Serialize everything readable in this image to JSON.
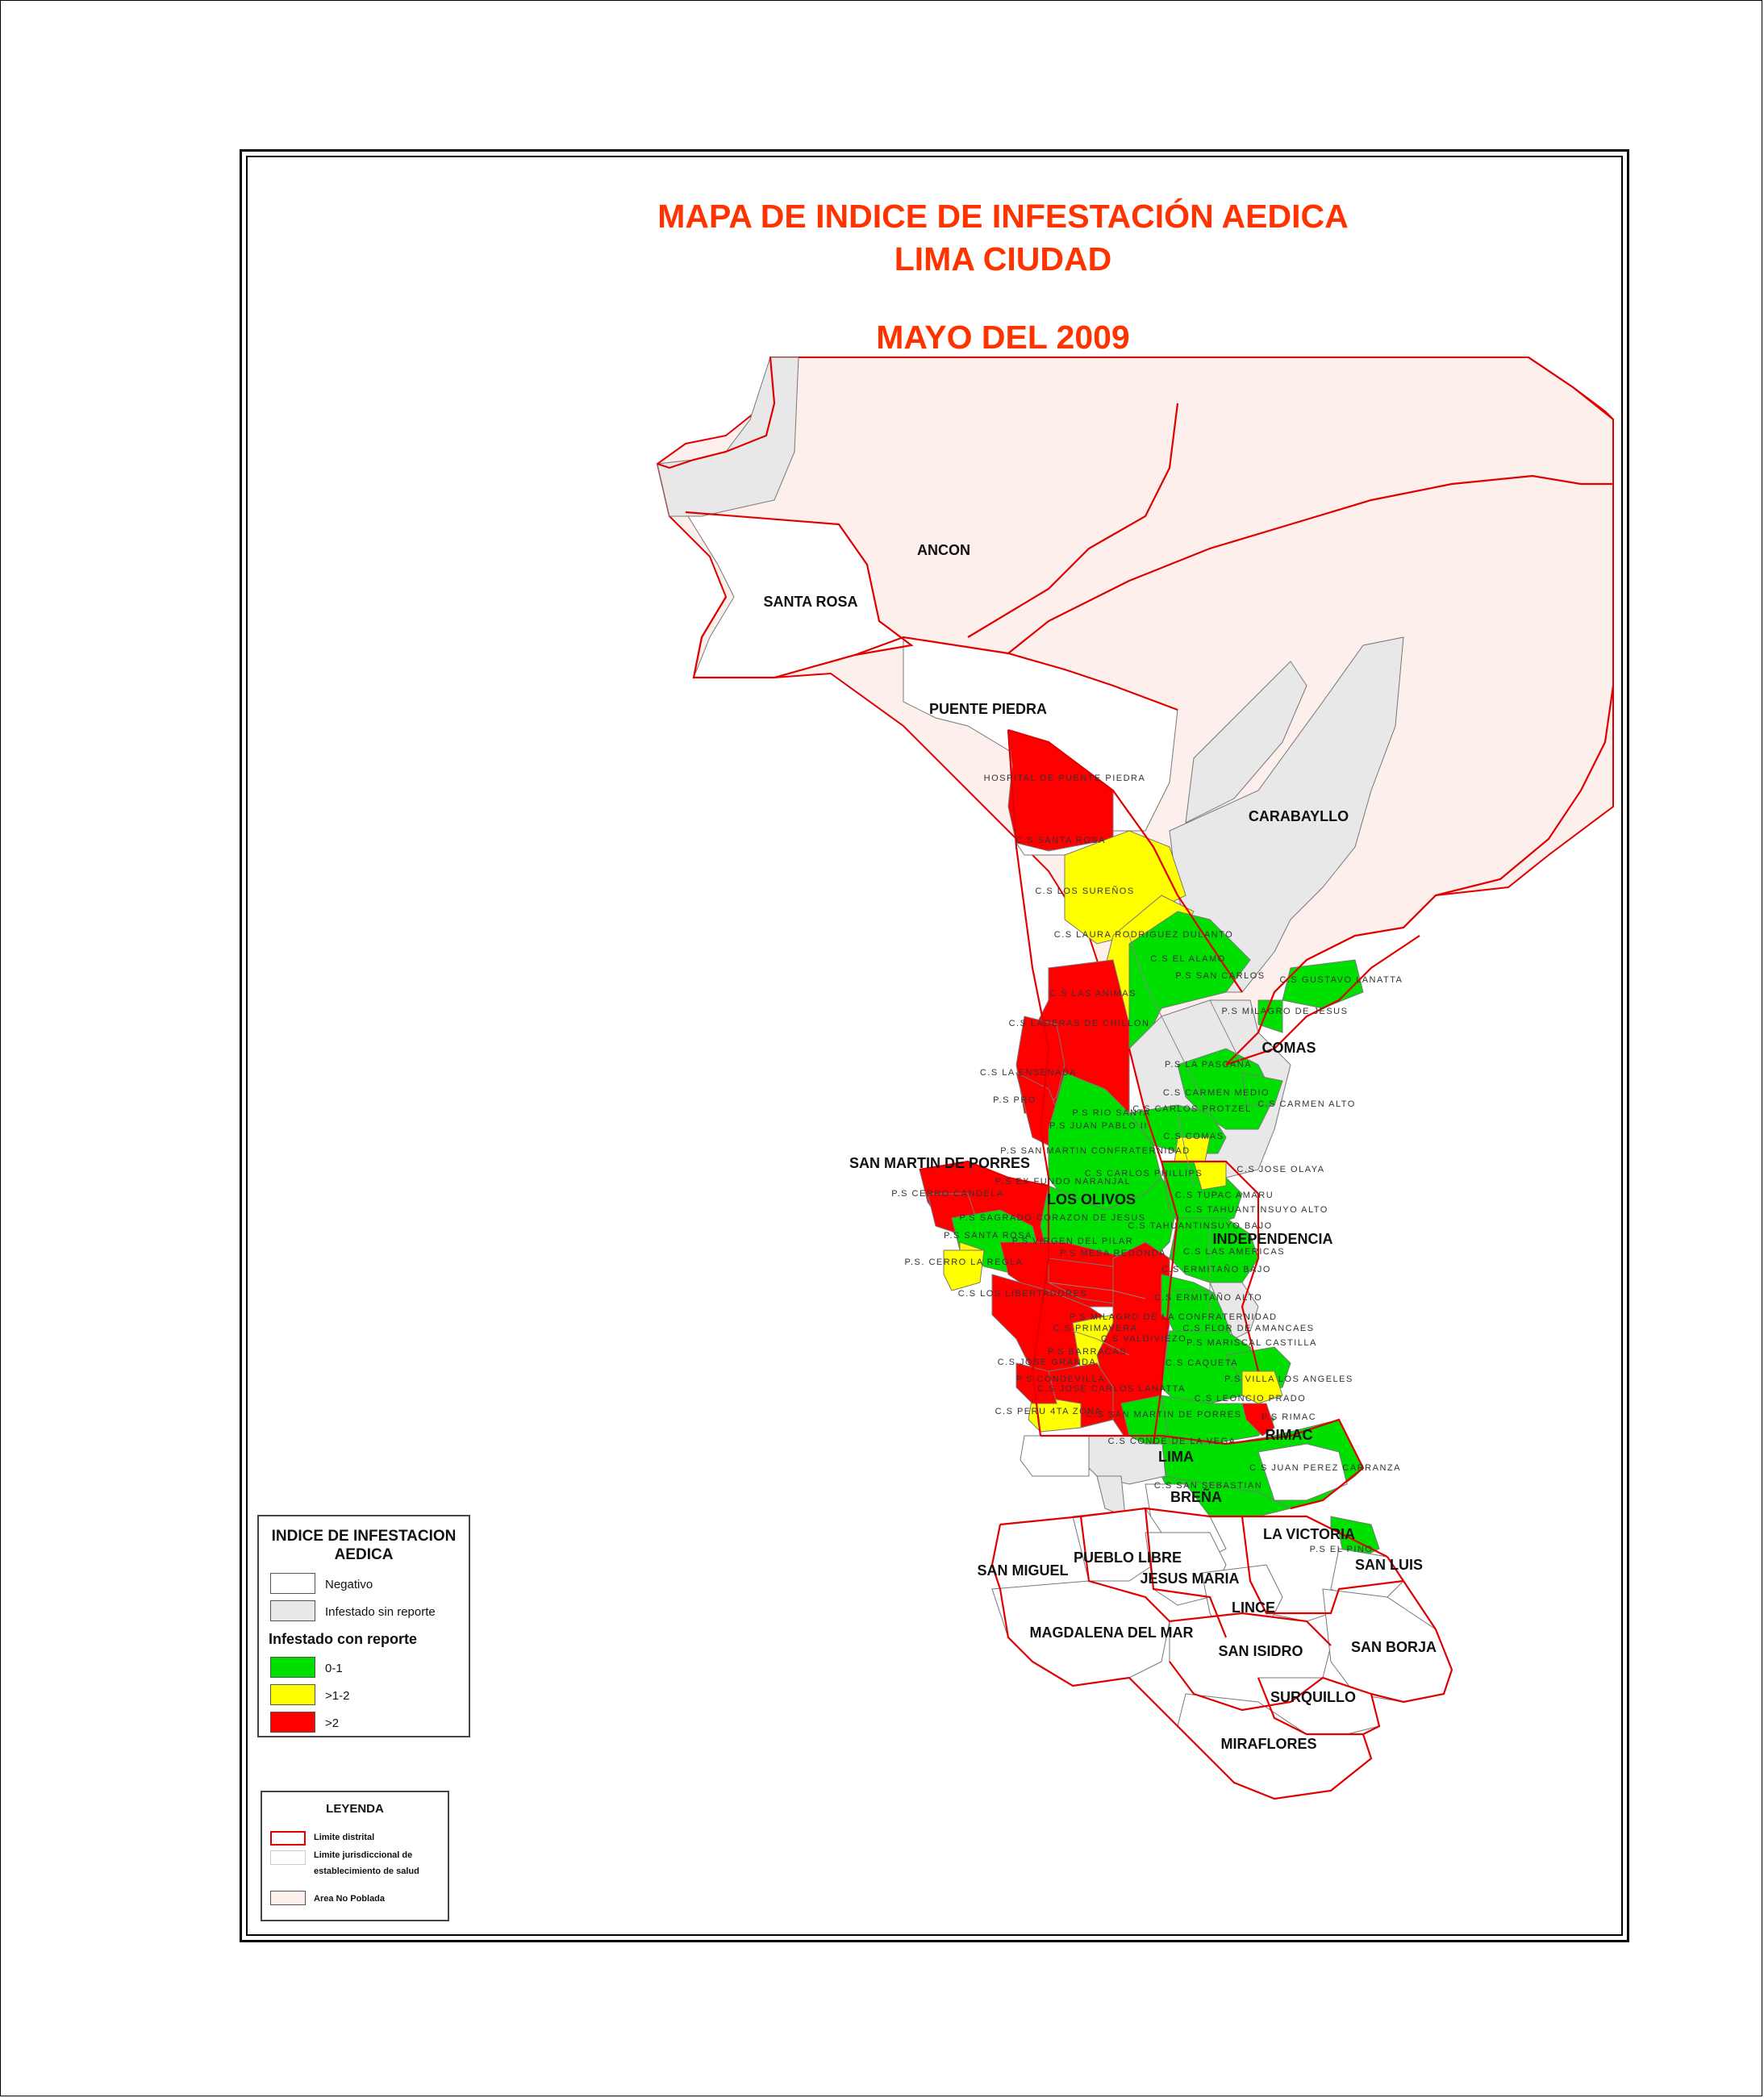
{
  "title": {
    "line1": "MAPA DE INDICE DE INFESTACIÓN AEDICA",
    "line2": "LIMA CIUDAD",
    "date": "MAYO DEL 2009"
  },
  "colors": {
    "negative": "#ffffff",
    "no_report": "#e8e8e8",
    "low": "#00e000",
    "mid": "#ffff00",
    "high": "#ff0000",
    "no_pop": "#fcefec",
    "boundary": "#e00000"
  },
  "districts": [
    {
      "name": "ANCON",
      "class": "no_pop"
    },
    {
      "name": "SANTA ROSA",
      "class": "negative"
    },
    {
      "name": "PUENTE PIEDRA",
      "class": "negative"
    },
    {
      "name": "CARABAYLLO",
      "class": "no_report"
    },
    {
      "name": "COMAS",
      "class": "low"
    },
    {
      "name": "SAN MARTIN DE PORRES",
      "class": "high"
    },
    {
      "name": "LOS OLIVOS",
      "class": "low"
    },
    {
      "name": "INDEPENDENCIA",
      "class": "low"
    },
    {
      "name": "RIMAC",
      "class": "low"
    },
    {
      "name": "LIMA",
      "class": "no_report"
    },
    {
      "name": "BREÑA",
      "class": "negative"
    },
    {
      "name": "LA VICTORIA",
      "class": "negative"
    },
    {
      "name": "SAN LUIS",
      "class": "negative"
    },
    {
      "name": "SAN MIGUEL",
      "class": "negative"
    },
    {
      "name": "PUEBLO LIBRE",
      "class": "negative"
    },
    {
      "name": "JESUS MARIA",
      "class": "negative"
    },
    {
      "name": "LINCE",
      "class": "negative"
    },
    {
      "name": "MAGDALENA DEL MAR",
      "class": "negative"
    },
    {
      "name": "SAN ISIDRO",
      "class": "negative"
    },
    {
      "name": "SAN BORJA",
      "class": "negative"
    },
    {
      "name": "SURQUILLO",
      "class": "negative"
    },
    {
      "name": "MIRAFLORES",
      "class": "negative"
    }
  ],
  "facilities": [
    "HOSPITAL DE PUENTE PIEDRA",
    "C.S SANTA ROSA",
    "C.S LOS SUREÑOS",
    "C.S LAURA RODRIGUEZ DULANTO",
    "C.S EL ALAMO",
    "P.S SAN CARLOS",
    "C.S GUSTAVO LANATTA",
    "C.S LAS ANIMAS",
    "C.S LADERAS DE CHILLON",
    "P.S MILAGRO DE JESUS",
    "C.S LA ENSENADA",
    "P.S LA PASCANA",
    "P.S PRO",
    "C.S CARMEN MEDIO",
    "P.S RIO SANTA",
    "C.S CARLOS PROTZEL",
    "C.S CARMEN ALTO",
    "P.S JUAN PABLO II",
    "C.S COMAS",
    "P.S SAN MARTIN CONFRATERNIDAD",
    "C.S CARLOS PHILLIPS",
    "C.S JOSE OLAYA",
    "P.S EX FUNDO NARANJAL",
    "C.S TUPAC AMARU",
    "P.S CERRO CANDELA",
    "C.S TAHUANTINSUYO ALTO",
    "P.S SAGRADO CORAZON DE JESUS",
    "C.S TAHUANTINSUYO BAJO",
    "P.S SANTA ROSA",
    "P.S VIRGEN DEL PILAR",
    "C.S LAS AMERICAS",
    "P.S MESA REDONDA",
    "P.S. CERRO LA REGLA",
    "C.S ERMITAÑO BAJO",
    "C.S LOS LIBERTADORES",
    "C.S ERMITAÑO ALTO",
    "P.S MILAGRO DE LA CONFRATERNIDAD",
    "C.S PRIMAVERA",
    "C.S FLOR DE AMANCAES",
    "C.S VALDIVIEZO",
    "P.S MARISCAL CASTILLA",
    "P.S BARRACAS",
    "C.S JOSE GRANDA",
    "C.S CAQUETA",
    "P.S VILLA LOS ANGELES",
    "P.S CONDEVILLA",
    "C.S JOSE CARLOS LANATTA",
    "C.S LEONCIO PRADO",
    "C.S PERU 4TA ZONA",
    "C.S SAN MARTIN DE PORRES",
    "P.S RIMAC",
    "C.S CONDE DE LA VEGA",
    "C.S JUAN PEREZ CARRANZA",
    "C.S SAN SEBASTIAN",
    "P.S EL PINO"
  ],
  "legend_index": {
    "title_line1": "INDICE DE INFESTACION",
    "title_line2": "AEDICA",
    "negative": "Negativo",
    "no_report": "Infestado sin reporte",
    "with_report_header": "Infestado con reporte",
    "low": "0-1",
    "mid": ">1-2",
    "high": ">2"
  },
  "legend_general": {
    "title": "LEYENDA",
    "district_limit": "Limite distrital",
    "facility_limit_line1": "Limite jurisdiccional de",
    "facility_limit_line2": "establecimiento de salud",
    "no_pop": "Area No Poblada"
  }
}
